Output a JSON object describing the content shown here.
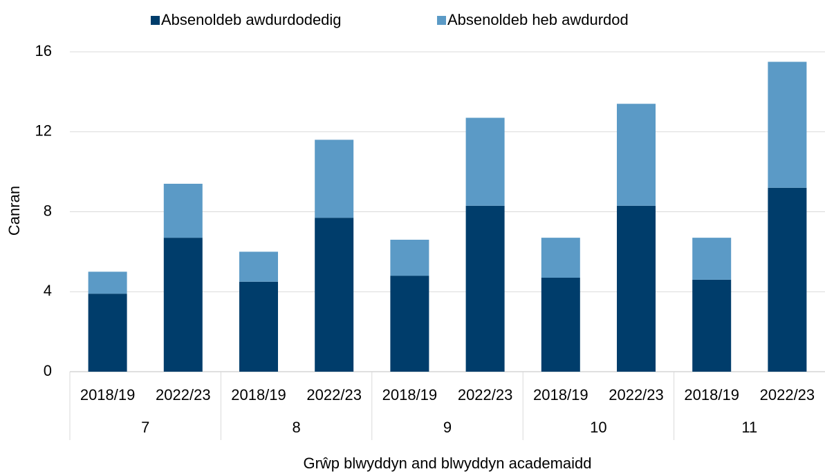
{
  "chart_data": {
    "type": "stacked_bar",
    "categories": [
      "2018/19",
      "2022/23",
      "2018/19",
      "2022/23",
      "2018/19",
      "2022/23",
      "2018/19",
      "2022/23",
      "2018/19",
      "2022/23"
    ],
    "groups": [
      "7",
      "8",
      "9",
      "10",
      "11"
    ],
    "series": [
      {
        "name": "Absenoldeb awdurdodedig",
        "color": "#003d6b",
        "values": [
          3.9,
          6.7,
          4.5,
          7.7,
          4.8,
          8.3,
          4.7,
          8.3,
          4.6,
          9.2
        ]
      },
      {
        "name": "Absenoldeb heb awdurdod",
        "color": "#5b9ac6",
        "values": [
          1.1,
          2.7,
          1.5,
          3.9,
          1.8,
          4.4,
          2.0,
          5.1,
          2.1,
          6.3
        ]
      }
    ],
    "y_label": "Canran",
    "x_label": "Grŵp blwyddyn and blwyddyn academaidd",
    "ylim": [
      0,
      16
    ],
    "yticks": [
      0,
      4,
      8,
      12,
      16
    ],
    "grid": true,
    "legend": "top"
  }
}
